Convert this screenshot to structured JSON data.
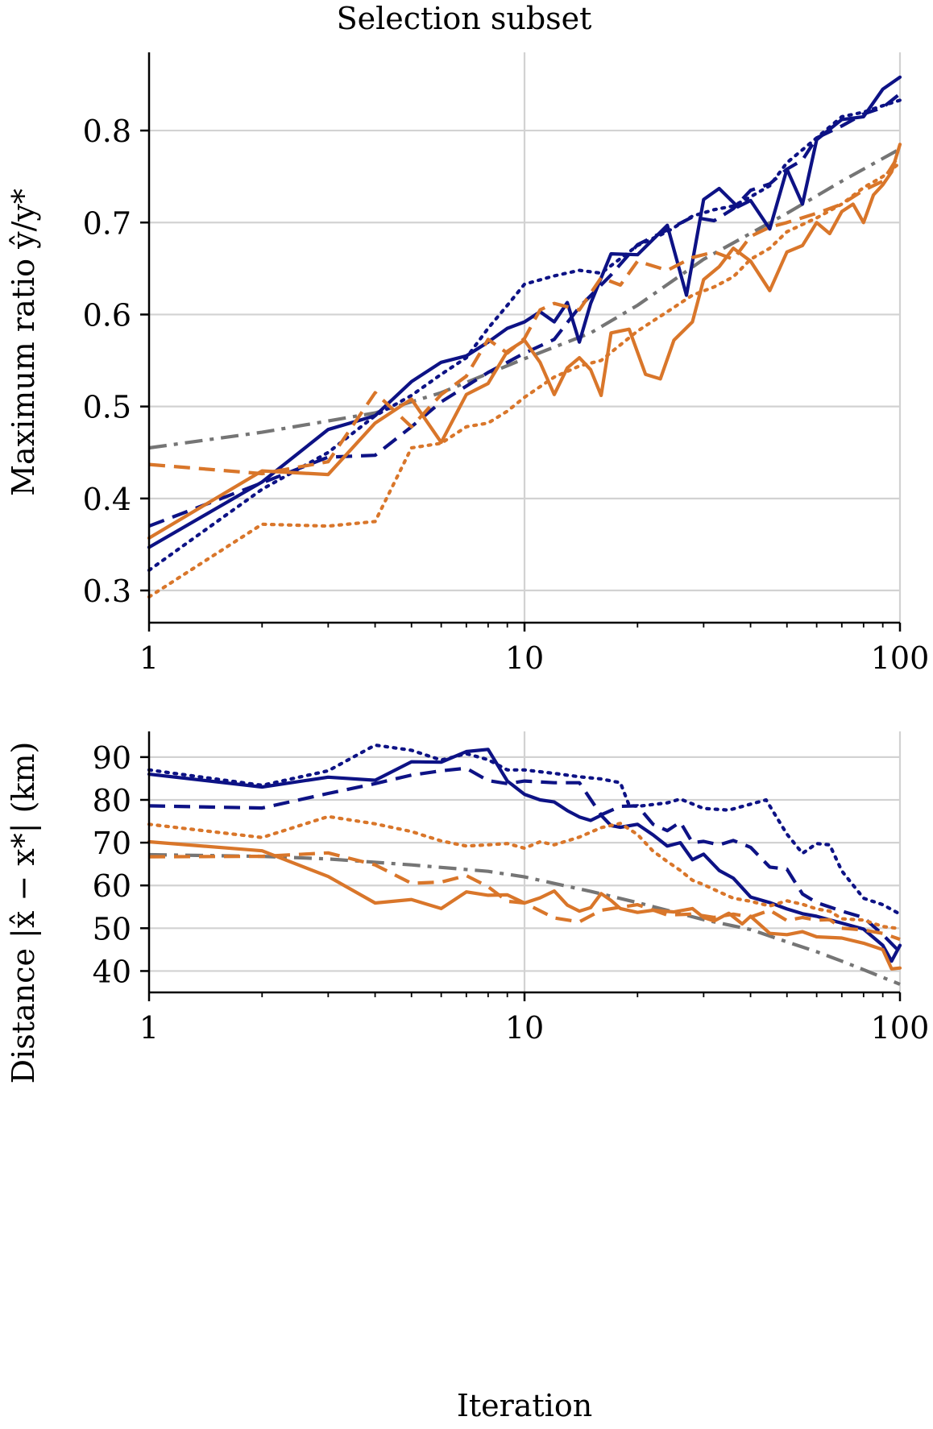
{
  "figure_title": "Selection subset",
  "colors": {
    "navy": "#0d1285",
    "orange": "#d9762a",
    "gray": "#757575",
    "grid": "#d2d2d2"
  },
  "x_tick_labels": [
    "1",
    "10",
    "100"
  ],
  "chart_data": [
    {
      "type": "line",
      "xscale": "log",
      "xlim": [
        1,
        100
      ],
      "ylim": [
        0.265,
        0.885
      ],
      "xlabel": "",
      "ylabel": "Maximum ratio ŷ/y*",
      "grid": true,
      "yticks": [
        0.3,
        0.4,
        0.5,
        0.6,
        0.7,
        0.8
      ],
      "ytick_labels": [
        "0.3",
        "0.4",
        "0.5",
        "0.6",
        "0.7",
        "0.8"
      ],
      "series": [
        {
          "name": "reference",
          "color": "gray",
          "style": "dashdot",
          "x": [
            1,
            2,
            4,
            6,
            10,
            15,
            20,
            30,
            50,
            70,
            100
          ],
          "y": [
            0.455,
            0.472,
            0.493,
            0.515,
            0.552,
            0.58,
            0.61,
            0.66,
            0.71,
            0.745,
            0.78
          ]
        },
        {
          "name": "navy-solid",
          "color": "navy",
          "style": "solid",
          "x": [
            1,
            2,
            3,
            4,
            5,
            6,
            7,
            8,
            9,
            10,
            11,
            12,
            13,
            14,
            15,
            17,
            20,
            24,
            27,
            30,
            33,
            37,
            40,
            45,
            50,
            55,
            60,
            70,
            80,
            90,
            100
          ],
          "y": [
            0.347,
            0.418,
            0.475,
            0.49,
            0.527,
            0.548,
            0.555,
            0.57,
            0.585,
            0.592,
            0.603,
            0.592,
            0.613,
            0.57,
            0.612,
            0.666,
            0.665,
            0.697,
            0.621,
            0.725,
            0.737,
            0.717,
            0.724,
            0.693,
            0.758,
            0.72,
            0.79,
            0.812,
            0.815,
            0.845,
            0.858
          ]
        },
        {
          "name": "navy-dashed",
          "color": "navy",
          "style": "dashed",
          "x": [
            1,
            2,
            3,
            4,
            5,
            6,
            8,
            10,
            12,
            14,
            17,
            20,
            24,
            28,
            32,
            36,
            40,
            45,
            50,
            55,
            60,
            70,
            80,
            90,
            100
          ],
          "y": [
            0.37,
            0.417,
            0.445,
            0.447,
            0.478,
            0.505,
            0.537,
            0.558,
            0.573,
            0.608,
            0.643,
            0.676,
            0.692,
            0.706,
            0.702,
            0.715,
            0.735,
            0.742,
            0.758,
            0.768,
            0.792,
            0.805,
            0.818,
            0.825,
            0.84
          ]
        },
        {
          "name": "navy-dotted",
          "color": "navy",
          "style": "dotted",
          "x": [
            1,
            2,
            3,
            4,
            5,
            6,
            7,
            8,
            9,
            10,
            12,
            14,
            16,
            20,
            24,
            28,
            32,
            36,
            40,
            45,
            50,
            60,
            70,
            80,
            90,
            100
          ],
          "y": [
            0.322,
            0.41,
            0.45,
            0.49,
            0.512,
            0.535,
            0.553,
            0.585,
            0.61,
            0.633,
            0.642,
            0.648,
            0.645,
            0.675,
            0.69,
            0.707,
            0.714,
            0.718,
            0.728,
            0.74,
            0.765,
            0.792,
            0.815,
            0.82,
            0.827,
            0.833
          ]
        },
        {
          "name": "orange-solid",
          "color": "orange",
          "style": "solid",
          "x": [
            1,
            2,
            3,
            4,
            5,
            6,
            7,
            8,
            9,
            10,
            11,
            12,
            13,
            14,
            15,
            16,
            17,
            19,
            21,
            23,
            25,
            28,
            30,
            33,
            36,
            40,
            45,
            50,
            55,
            60,
            65,
            70,
            75,
            80,
            85,
            90,
            95,
            100
          ],
          "y": [
            0.357,
            0.43,
            0.426,
            0.482,
            0.508,
            0.461,
            0.513,
            0.525,
            0.56,
            0.572,
            0.548,
            0.513,
            0.542,
            0.553,
            0.54,
            0.512,
            0.58,
            0.584,
            0.535,
            0.53,
            0.572,
            0.592,
            0.638,
            0.652,
            0.672,
            0.658,
            0.626,
            0.668,
            0.675,
            0.7,
            0.688,
            0.712,
            0.72,
            0.7,
            0.73,
            0.741,
            0.755,
            0.785
          ]
        },
        {
          "name": "orange-dashed",
          "color": "orange",
          "style": "dashed",
          "x": [
            1,
            2,
            3,
            4,
            5,
            6,
            7,
            8,
            9,
            10,
            11,
            12,
            14,
            16,
            18,
            20,
            24,
            28,
            32,
            36,
            40,
            45,
            50,
            60,
            70,
            80,
            90,
            100
          ],
          "y": [
            0.437,
            0.427,
            0.44,
            0.515,
            0.478,
            0.513,
            0.533,
            0.573,
            0.558,
            0.574,
            0.605,
            0.612,
            0.605,
            0.64,
            0.632,
            0.658,
            0.648,
            0.662,
            0.668,
            0.66,
            0.685,
            0.695,
            0.7,
            0.71,
            0.72,
            0.735,
            0.745,
            0.775
          ]
        },
        {
          "name": "orange-dotted",
          "color": "orange",
          "style": "dotted",
          "x": [
            1,
            2,
            3,
            4,
            5,
            6,
            7,
            8,
            9,
            10,
            12,
            14,
            16,
            18,
            20,
            24,
            28,
            32,
            36,
            40,
            45,
            50,
            60,
            70,
            80,
            90,
            100
          ],
          "y": [
            0.293,
            0.372,
            0.37,
            0.375,
            0.455,
            0.46,
            0.478,
            0.482,
            0.495,
            0.51,
            0.532,
            0.544,
            0.55,
            0.567,
            0.582,
            0.603,
            0.621,
            0.63,
            0.641,
            0.66,
            0.672,
            0.69,
            0.705,
            0.72,
            0.738,
            0.75,
            0.765
          ]
        }
      ]
    },
    {
      "type": "line",
      "xscale": "log",
      "xlim": [
        1,
        100
      ],
      "ylim": [
        35,
        96
      ],
      "xlabel": "Iteration",
      "ylabel": "Distance |x̂ − x*| (km)",
      "grid": true,
      "yticks": [
        40,
        50,
        60,
        70,
        80,
        90
      ],
      "ytick_labels": [
        "40",
        "50",
        "60",
        "70",
        "80",
        "90"
      ],
      "series": [
        {
          "name": "reference",
          "color": "gray",
          "style": "dashdot",
          "x": [
            1,
            2,
            3,
            5,
            8,
            10,
            15,
            20,
            30,
            40,
            50,
            60,
            70,
            80,
            90,
            100
          ],
          "y": [
            67.2,
            66.8,
            66.2,
            64.8,
            63.3,
            62,
            58.6,
            56,
            52,
            49.7,
            46.8,
            44.5,
            42.3,
            40.3,
            38.5,
            36.9
          ]
        },
        {
          "name": "navy-solid",
          "color": "navy",
          "style": "solid",
          "x": [
            1,
            2,
            3,
            4,
            5,
            6,
            7,
            8,
            9,
            10,
            11,
            12,
            13,
            14,
            15,
            16,
            17,
            18,
            20,
            22,
            24,
            26,
            28,
            30,
            33,
            36,
            40,
            45,
            50,
            55,
            60,
            70,
            80,
            90,
            95,
            100
          ],
          "y": [
            86,
            83,
            85.3,
            84.6,
            88.9,
            88.8,
            91.3,
            91.8,
            84.4,
            81.3,
            80,
            79.5,
            77.5,
            76,
            75.2,
            76.4,
            74,
            73.6,
            74.3,
            71.8,
            69.2,
            70,
            66,
            67.3,
            63.5,
            61.7,
            57.3,
            56,
            54.5,
            53.4,
            52.8,
            51.2,
            49.8,
            46,
            42.3,
            46
          ]
        },
        {
          "name": "navy-dashed",
          "color": "navy",
          "style": "dashed",
          "x": [
            1,
            2,
            3,
            4,
            5,
            6,
            7,
            8,
            9,
            10,
            12,
            14,
            16,
            18,
            20,
            22,
            24,
            26,
            28,
            30,
            33,
            36,
            40,
            45,
            50,
            55,
            60,
            70,
            80,
            90,
            100
          ],
          "y": [
            78.6,
            78.1,
            81.5,
            83.8,
            85.8,
            86.8,
            87.4,
            84.5,
            83.8,
            84.4,
            84,
            84,
            76.5,
            78.5,
            78.6,
            74.3,
            72.8,
            74.8,
            70,
            70.3,
            69.5,
            70.5,
            68.9,
            64.3,
            63.8,
            58,
            56,
            54,
            52.5,
            48.5,
            44.4
          ]
        },
        {
          "name": "navy-dotted",
          "color": "navy",
          "style": "dotted",
          "x": [
            1,
            2,
            3,
            4,
            5,
            6,
            7,
            8,
            9,
            10,
            12,
            14,
            16,
            18,
            19,
            20,
            24,
            26,
            30,
            35,
            40,
            44,
            50,
            55,
            60,
            65,
            70,
            80,
            90,
            100
          ],
          "y": [
            87,
            83.4,
            86.8,
            92.8,
            91.6,
            89.3,
            90.8,
            89.4,
            87,
            87,
            86.2,
            85.4,
            84.9,
            84,
            78.7,
            78.5,
            79.3,
            80.2,
            78,
            77.6,
            79,
            80,
            72,
            67.5,
            69.8,
            69.5,
            63.4,
            57,
            55.5,
            53.3
          ]
        },
        {
          "name": "orange-solid",
          "color": "orange",
          "style": "solid",
          "x": [
            1,
            2,
            3,
            4,
            5,
            6,
            7,
            8,
            9,
            10,
            11,
            12,
            13,
            14,
            15,
            16,
            17,
            18,
            20,
            22,
            25,
            28,
            30,
            32,
            35,
            38,
            40,
            45,
            50,
            55,
            60,
            70,
            80,
            90,
            95,
            100
          ],
          "y": [
            70.2,
            68.1,
            62.1,
            55.9,
            56.7,
            54.6,
            58.5,
            57.7,
            57.8,
            55.9,
            57.1,
            58.7,
            55.4,
            54,
            54.8,
            58.1,
            56.5,
            54.6,
            53.7,
            54.2,
            53.8,
            54.6,
            52.5,
            51.7,
            53.5,
            51,
            52.8,
            48.8,
            48.5,
            49.2,
            48,
            47.7,
            46.5,
            45,
            40.5,
            40.7
          ]
        },
        {
          "name": "orange-dashed",
          "color": "orange",
          "style": "dashed",
          "x": [
            1,
            2,
            3,
            4,
            5,
            6,
            7,
            8,
            9,
            10,
            12,
            14,
            16,
            18,
            20,
            24,
            28,
            32,
            36,
            40,
            45,
            50,
            55,
            60,
            65,
            70,
            80,
            90,
            100
          ],
          "y": [
            66.7,
            66.8,
            67.6,
            64.8,
            60.5,
            60.8,
            62.3,
            59.7,
            56.3,
            55.9,
            52.4,
            51.5,
            54.2,
            54.9,
            55.5,
            53.1,
            53.3,
            52.5,
            53.3,
            52.6,
            54.2,
            51.8,
            52.5,
            51.9,
            52,
            50,
            49.6,
            48.8,
            47.4
          ]
        },
        {
          "name": "orange-dotted",
          "color": "orange",
          "style": "dotted",
          "x": [
            1,
            2,
            3,
            4,
            5,
            6,
            7,
            8,
            9,
            10,
            11,
            12,
            14,
            16,
            18,
            20,
            22,
            24,
            26,
            28,
            30,
            33,
            36,
            40,
            45,
            50,
            55,
            60,
            65,
            70,
            80,
            90,
            100
          ],
          "y": [
            74.3,
            71.2,
            76.1,
            74.4,
            72.6,
            70.4,
            69.2,
            69.5,
            69.8,
            68.7,
            70.2,
            69.5,
            71.3,
            73.5,
            74.5,
            71.9,
            68,
            65.6,
            63.5,
            61.2,
            60.2,
            58.5,
            57,
            56.3,
            55.2,
            56.4,
            55.6,
            54.5,
            54,
            52.2,
            51.9,
            50.4,
            49.9
          ]
        }
      ]
    }
  ]
}
